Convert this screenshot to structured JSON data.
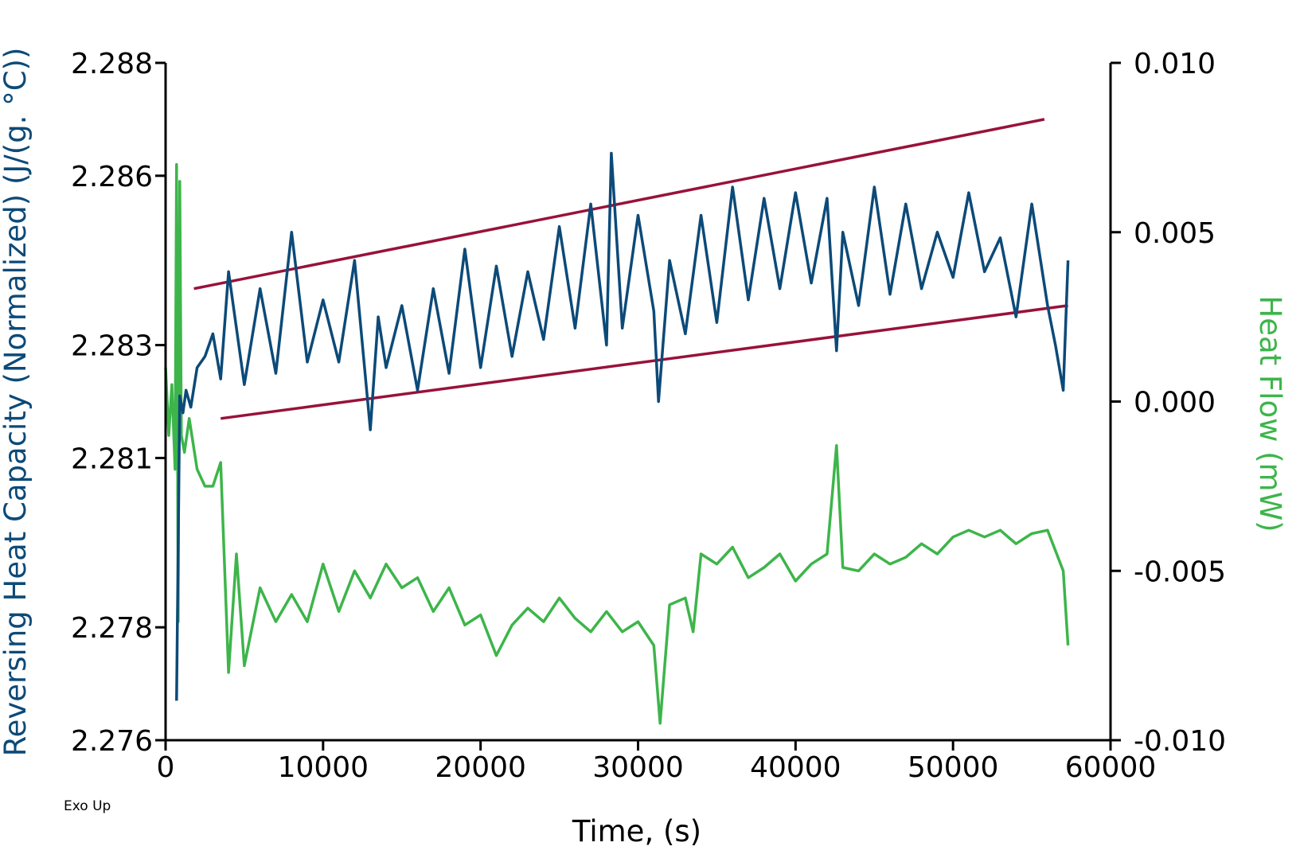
{
  "chart_data": {
    "type": "line",
    "title": "",
    "xlabel": "Time, (s)",
    "ylabel_left": "Reversing Heat Capacity (Normalized) (J/(g. °C))",
    "ylabel_right": "Heat Flow (mW)",
    "annotation": "Exo Up",
    "xlim": [
      0,
      60000
    ],
    "ylim_left": [
      2.276,
      2.288
    ],
    "ylim_right": [
      -0.01,
      0.01
    ],
    "x_ticks": [
      "0",
      "10000",
      "20000",
      "30000",
      "40000",
      "50000",
      "60000"
    ],
    "y_left_ticks": [
      "2.276",
      "2.278",
      "2.281",
      "2.283",
      "2.286",
      "2.288"
    ],
    "y_left_tick_values": [
      2.276,
      2.278,
      2.281,
      2.283,
      2.286,
      2.288
    ],
    "y_right_ticks": [
      "-0.010",
      "-0.005",
      "0.000",
      "0.005",
      "0.010"
    ],
    "colors": {
      "heat_capacity": "#0c4a78",
      "heat_flow": "#3db54a",
      "trend_band": "#98123a",
      "left_axis_title": "#0c4a78",
      "right_axis_title": "#3db54a"
    },
    "grid": false,
    "series": [
      {
        "axis": "left",
        "x": [
          700,
          900,
          1100,
          1300,
          1600,
          2000,
          2500,
          3000,
          3500,
          4000,
          5000,
          6000,
          7000,
          8000,
          9000,
          10000,
          11000,
          12000,
          13000,
          13500,
          14000,
          15000,
          16000,
          17000,
          18000,
          19000,
          20000,
          21000,
          22000,
          23000,
          24000,
          25000,
          26000,
          27000,
          28000,
          28300,
          29000,
          30000,
          31000,
          31300,
          32000,
          33000,
          34000,
          35000,
          36000,
          37000,
          38000,
          39000,
          40000,
          41000,
          42000,
          42600,
          43000,
          44000,
          45000,
          46000,
          47000,
          48000,
          49000,
          50000,
          51000,
          52000,
          53000,
          54000,
          55000,
          56000,
          56500,
          57000,
          57300
        ],
        "y": [
          2.2767,
          2.2821,
          2.2818,
          2.2822,
          2.2819,
          2.2826,
          2.2828,
          2.2832,
          2.2824,
          2.2843,
          2.2823,
          2.284,
          2.2825,
          2.285,
          2.2827,
          2.2838,
          2.2827,
          2.2845,
          2.2815,
          2.2835,
          2.2826,
          2.2837,
          2.2822,
          2.284,
          2.2825,
          2.2847,
          2.2826,
          2.2844,
          2.2828,
          2.2843,
          2.2831,
          2.2851,
          2.2833,
          2.2855,
          2.283,
          2.2864,
          2.2833,
          2.2853,
          2.2836,
          2.282,
          2.2845,
          2.2832,
          2.2853,
          2.2834,
          2.2858,
          2.2838,
          2.2856,
          2.284,
          2.2857,
          2.2841,
          2.2856,
          2.2829,
          2.285,
          2.2837,
          2.2858,
          2.2839,
          2.2855,
          2.284,
          2.285,
          2.2842,
          2.2857,
          2.2843,
          2.2849,
          2.2835,
          2.2855,
          2.2837,
          2.283,
          2.2822,
          2.2845
        ]
      },
      {
        "axis": "right",
        "x": [
          0,
          200,
          400,
          600,
          700,
          800,
          900,
          1000,
          1200,
          1500,
          2000,
          2500,
          3000,
          3500,
          4000,
          4500,
          5000,
          6000,
          7000,
          8000,
          9000,
          10000,
          11000,
          12000,
          13000,
          14000,
          15000,
          16000,
          17000,
          18000,
          19000,
          20000,
          21000,
          22000,
          23000,
          24000,
          25000,
          26000,
          27000,
          28000,
          29000,
          30000,
          31000,
          31400,
          32000,
          33000,
          33500,
          34000,
          35000,
          36000,
          37000,
          38000,
          39000,
          40000,
          41000,
          42000,
          42600,
          43000,
          44000,
          45000,
          46000,
          47000,
          48000,
          49000,
          50000,
          51000,
          52000,
          53000,
          54000,
          55000,
          56000,
          57000,
          57300
        ],
        "y": [
          0.001,
          -0.001,
          0.0005,
          -0.002,
          0.007,
          -0.0065,
          0.0065,
          -0.001,
          -0.0015,
          -0.0005,
          -0.002,
          -0.0025,
          -0.0025,
          -0.0018,
          -0.008,
          -0.0045,
          -0.0078,
          -0.0055,
          -0.0065,
          -0.0057,
          -0.0065,
          -0.0048,
          -0.0062,
          -0.005,
          -0.0058,
          -0.0048,
          -0.0055,
          -0.0052,
          -0.0062,
          -0.0055,
          -0.0066,
          -0.0063,
          -0.0075,
          -0.0066,
          -0.0061,
          -0.0065,
          -0.0058,
          -0.0064,
          -0.0068,
          -0.0062,
          -0.0068,
          -0.0065,
          -0.0072,
          -0.0095,
          -0.006,
          -0.0058,
          -0.0068,
          -0.0045,
          -0.0048,
          -0.0043,
          -0.0052,
          -0.0049,
          -0.0045,
          -0.0053,
          -0.0048,
          -0.0045,
          -0.0013,
          -0.0049,
          -0.005,
          -0.0045,
          -0.0048,
          -0.0046,
          -0.0042,
          -0.0045,
          -0.004,
          -0.0038,
          -0.004,
          -0.0038,
          -0.0042,
          -0.0039,
          -0.0038,
          -0.005,
          -0.0072
        ]
      }
    ],
    "trend_lines": [
      {
        "x": [
          1800,
          55800
        ],
        "y": [
          2.284,
          2.287
        ]
      },
      {
        "x": [
          3500,
          57300
        ],
        "y": [
          2.2817,
          2.2837
        ]
      }
    ]
  }
}
